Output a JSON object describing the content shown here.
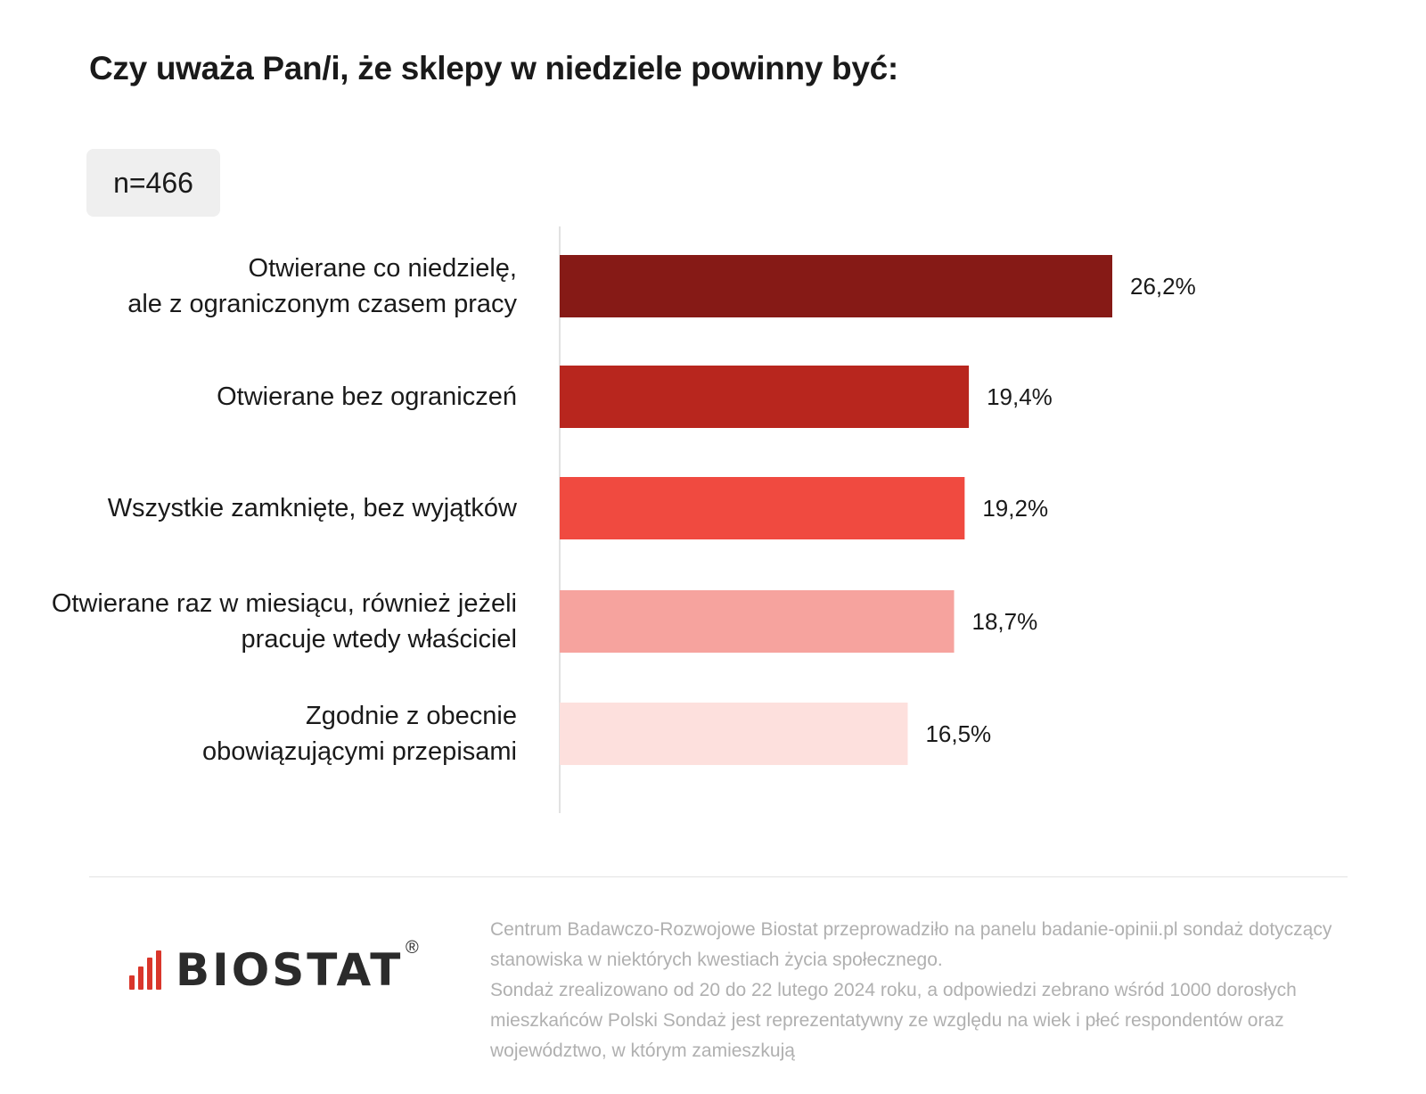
{
  "title": "Czy uważa Pan/i, że sklepy w niedziele powinny być:",
  "sample": "n=466",
  "chart_data": {
    "type": "bar",
    "orientation": "horizontal",
    "categories": [
      "Otwierane co niedzielę,\nale z ograniczonym czasem pracy",
      "Otwierane bez ograniczeń",
      "Wszystkie zamknięte, bez wyjątków",
      "Otwierane raz w miesiącu, również jeżeli\npracuje wtedy właściciel",
      "Zgodnie z obecnie\nobowiązującymi przepisami"
    ],
    "values": [
      26.2,
      19.4,
      19.2,
      18.7,
      16.5
    ],
    "value_labels": [
      "26,2%",
      "19,4%",
      "19,2%",
      "18,7%",
      "16,5%"
    ],
    "colors": [
      "#861a16",
      "#b8261e",
      "#f04a40",
      "#f6a39e",
      "#fde0dd"
    ],
    "xlim": [
      0,
      26.2
    ],
    "grid": false
  },
  "logo": {
    "text": "BIOSTAT",
    "mark": "®",
    "icon": "bar-signal-icon",
    "color": "#d9362b"
  },
  "footnote": [
    "Centrum Badawczo-Rozwojowe Biostat przeprowadziło na panelu badanie-opinii.pl sondaż dotyczący stanowiska w niektórych kwestiach życia społecznego.",
    "Sondaż zrealizowano od 20 do 22 lutego 2024 roku, a odpowiedzi zebrano wśród 1000 dorosłych mieszkańców Polski Sondaż jest reprezentatywny ze względu na wiek i płeć respondentów oraz województwo, w którym zamieszkują"
  ]
}
